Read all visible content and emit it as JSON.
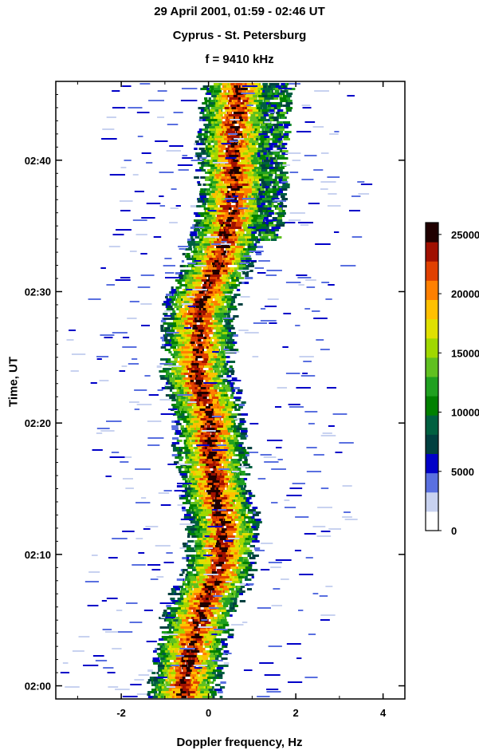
{
  "chart_data": {
    "type": "heatmap",
    "title": "29 April 2001, 01:59 - 02:46 UT",
    "subtitle": "Cyprus - St. Petersburg",
    "subtitle2": "f = 9410 kHz",
    "xlabel": "Doppler frequency, Hz",
    "ylabel": "Time, UT",
    "xlim": [
      -3.5,
      4.5
    ],
    "ylim": [
      "01:59.5",
      "02:46"
    ],
    "x_ticks": [
      "-2",
      "0",
      "2",
      "4"
    ],
    "y_ticks": [
      "02:00",
      "02:10",
      "02:20",
      "02:30",
      "02:40"
    ],
    "colorbar": {
      "ticks": [
        "0",
        "5000",
        "10000",
        "15000",
        "20000",
        "25000"
      ],
      "max": 26000,
      "colors": [
        "#ffffff",
        "#c8d2f0",
        "#5a70e0",
        "#0000c8",
        "#004040",
        "#006040",
        "#008000",
        "#20a020",
        "#60c020",
        "#a0d800",
        "#e0e000",
        "#ffc000",
        "#ff8000",
        "#e04000",
        "#a01000",
        "#200000"
      ]
    },
    "trace": {
      "description_points": [
        {
          "time": "02:00",
          "doppler_hz": -0.6
        },
        {
          "time": "02:03",
          "doppler_hz": -0.45
        },
        {
          "time": "02:06",
          "doppler_hz": -0.2
        },
        {
          "time": "02:09",
          "doppler_hz": 0.2
        },
        {
          "time": "02:12",
          "doppler_hz": 0.3
        },
        {
          "time": "02:15",
          "doppler_hz": 0.1
        },
        {
          "time": "02:18",
          "doppler_hz": 0.0
        },
        {
          "time": "02:21",
          "doppler_hz": -0.05
        },
        {
          "time": "02:24",
          "doppler_hz": -0.35
        },
        {
          "time": "02:26",
          "doppler_hz": -0.25
        },
        {
          "time": "02:28",
          "doppler_hz": -0.3
        },
        {
          "time": "02:30",
          "doppler_hz": -0.15
        },
        {
          "time": "02:32",
          "doppler_hz": 0.15
        },
        {
          "time": "02:35",
          "doppler_hz": 0.4
        },
        {
          "time": "02:38",
          "doppler_hz": 0.55
        },
        {
          "time": "02:41",
          "doppler_hz": 0.5
        },
        {
          "time": "02:44",
          "doppler_hz": 0.6
        },
        {
          "time": "02:46",
          "doppler_hz": 0.65
        }
      ]
    }
  }
}
